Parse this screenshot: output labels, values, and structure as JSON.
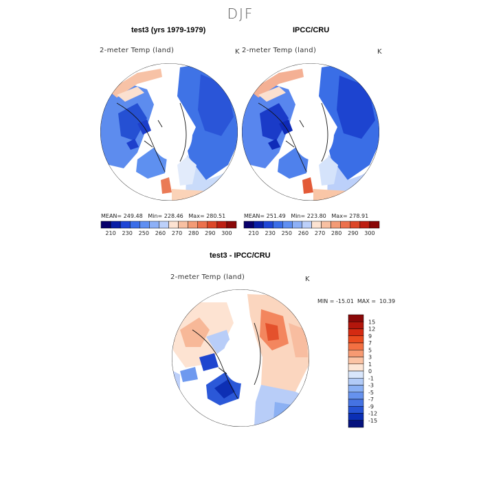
{
  "season": "DJF",
  "panels": [
    {
      "title": "test3 (yrs 1979-1979)",
      "variable": "2-meter Temp (land)",
      "unit": "K",
      "stats": {
        "mean": "249.48",
        "min": "228.46",
        "max": "280.51"
      }
    },
    {
      "title": "IPCC/CRU",
      "variable": "2-meter Temp (land)",
      "unit": "K",
      "stats": {
        "mean": "251.49",
        "min": "223.80",
        "max": "278.91"
      }
    },
    {
      "title": "test3 - IPCC/CRU",
      "variable": "2-meter Temp (land)",
      "unit": "K",
      "stats": {
        "min": "-15.01",
        "max": "10.39"
      }
    }
  ],
  "labels": {
    "mean": "MEAN=",
    "min": "Min=",
    "max": "Max=",
    "MIN": "MIN =",
    "MAX": "MAX ="
  },
  "colorbar_abs": {
    "ticks": [
      "210",
      "230",
      "250",
      "260",
      "270",
      "280",
      "290",
      "300"
    ],
    "colors": [
      "#08006b",
      "#0a1fa6",
      "#1f46d6",
      "#3a6de8",
      "#5f8ff2",
      "#8db0f7",
      "#bcd0fa",
      "#fde3d2",
      "#f8c0a2",
      "#f39b76",
      "#ec714d",
      "#dc4728",
      "#bd1f12",
      "#8a0808"
    ]
  },
  "colorbar_diff": {
    "ticks": [
      "15",
      "12",
      "9",
      "7",
      "5",
      "3",
      "1",
      "0",
      "-1",
      "-3",
      "-5",
      "-7",
      "-9",
      "-12",
      "-15"
    ],
    "colors": [
      "#8a0808",
      "#b3160c",
      "#d42a12",
      "#ea4b1f",
      "#f37042",
      "#f79a72",
      "#fbc3a4",
      "#fde6d6",
      "#d9e6fb",
      "#b2cbf7",
      "#8ab0f4",
      "#6692ee",
      "#4573e3",
      "#2653d4",
      "#0b2fb5",
      "#05127e"
    ]
  },
  "chart_data": [
    {
      "type": "heatmap",
      "title": "test3 (yrs 1979-1979)",
      "subtitle": "2-meter Temp (land)",
      "unit": "K",
      "projection": "north polar stereographic",
      "mean": 249.48,
      "min": 228.46,
      "max": 280.51,
      "levels": [
        210,
        230,
        250,
        260,
        270,
        280,
        290,
        300
      ]
    },
    {
      "type": "heatmap",
      "title": "IPCC/CRU",
      "subtitle": "2-meter Temp (land)",
      "unit": "K",
      "projection": "north polar stereographic",
      "mean": 251.49,
      "min": 223.8,
      "max": 278.91,
      "levels": [
        210,
        230,
        250,
        260,
        270,
        280,
        290,
        300
      ]
    },
    {
      "type": "heatmap",
      "title": "test3 - IPCC/CRU",
      "subtitle": "2-meter Temp (land)",
      "unit": "K",
      "projection": "north polar stereographic",
      "min": -15.01,
      "max": 10.39,
      "levels": [
        -15,
        -12,
        -9,
        -7,
        -5,
        -3,
        -1,
        0,
        1,
        3,
        5,
        7,
        9,
        12,
        15
      ]
    }
  ]
}
